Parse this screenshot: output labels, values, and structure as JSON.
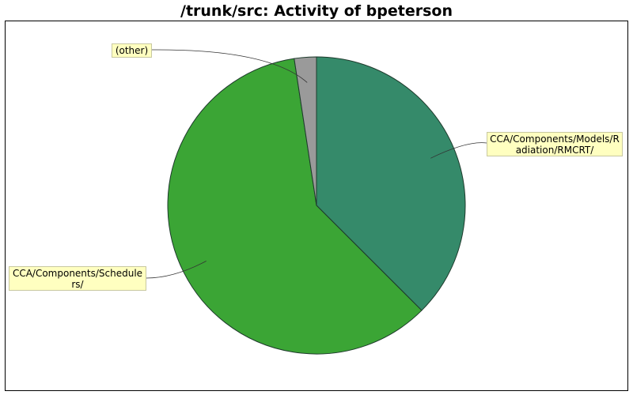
{
  "chart_data": {
    "type": "pie",
    "title": "/trunk/src: Activity of bpeterson",
    "slices": [
      {
        "label": "CCA/Components/Models/Radiation/RMCRT/",
        "label_lines": [
          "CCA/Components/Models/R",
          "adiation/RMCRT/"
        ],
        "value": 37.5,
        "color": "#358a6a"
      },
      {
        "label": "CCA/Components/Schedulers/",
        "label_lines": [
          "CCA/Components/Schedule",
          "rs/"
        ],
        "value": 60.1,
        "color": "#3ba535"
      },
      {
        "label": "(other)",
        "label_lines": [
          "(other)"
        ],
        "value": 2.4,
        "color": "#9a9a9a"
      }
    ]
  }
}
